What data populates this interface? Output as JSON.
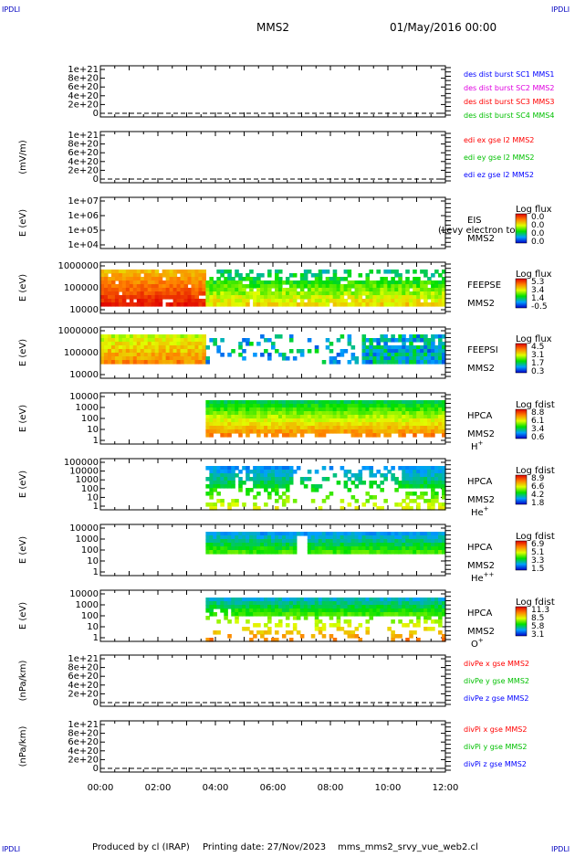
{
  "corner_label": "IPDLI",
  "header": {
    "title": "MMS2",
    "date": "01/May/2016 00:00"
  },
  "footer": {
    "producer": "Produced by cl (IRAP)",
    "printing": "Printing date: 27/Nov/2023",
    "script": "mms_mms2_srvy_vue_web2.cl"
  },
  "colors": {
    "red": "#ff0000",
    "green": "#00c000",
    "blue": "#0000ff",
    "magenta": "#e000e0",
    "dashed": "#000000"
  },
  "chart_data": {
    "type": "heatmap",
    "x_ticks": [
      "00:00",
      "02:00",
      "04:00",
      "06:00",
      "08:00",
      "10:00",
      "12:00"
    ],
    "x_range_hours": [
      0,
      12
    ],
    "panels": [
      {
        "kind": "line",
        "ylabel": "",
        "y_ticks": [
          "1e+21",
          "8e+20",
          "6e+20",
          "4e+20",
          "2e+20",
          "0"
        ],
        "legend": [
          {
            "text": "des dist burst SC1 MMS1",
            "color": "#0000ff"
          },
          {
            "text": "des dist burst SC2 MMS2",
            "color": "#e000e0"
          },
          {
            "text": "des dist burst SC3 MMS3",
            "color": "#ff0000"
          },
          {
            "text": "des dist burst SC4 MMS4",
            "color": "#00c000"
          }
        ]
      },
      {
        "kind": "line",
        "ylabel": "(mV/m)",
        "y_ticks": [
          "1e+21",
          "8e+20",
          "6e+20",
          "4e+20",
          "2e+20",
          "0"
        ],
        "legend": [
          {
            "text": "edi ex gse l2 MMS2",
            "color": "#ff0000"
          },
          {
            "text": "edi ey gse l2 MMS2",
            "color": "#00c000"
          },
          {
            "text": "edi ez gse l2 MMS2",
            "color": "#0000ff"
          }
        ]
      },
      {
        "kind": "spec",
        "ylabel": "E (eV)",
        "y_ticks": [
          "1e+07",
          "1e+06",
          "1e+05",
          "1e+04"
        ],
        "instrument": [
          "EIS",
          "MMS2"
        ],
        "overlay": "(Levy electron to",
        "cbar_title": "Log flux",
        "cbar_ticks": [
          "0.0",
          "0.0",
          "0.0",
          "0.0"
        ],
        "data_start_hour": null
      },
      {
        "kind": "spec",
        "ylabel": "E (eV)",
        "y_ticks": [
          "1000000",
          "100000",
          "10000"
        ],
        "instrument": [
          "FEEPSE",
          "MMS2"
        ],
        "cbar_title": "Log flux",
        "cbar_ticks": [
          "5.3",
          "3.4",
          "1.4",
          "-0.5"
        ],
        "data_start_hour": 0
      },
      {
        "kind": "spec",
        "ylabel": "E (eV)",
        "y_ticks": [
          "1000000",
          "100000",
          "10000"
        ],
        "instrument": [
          "FEEPSI",
          "MMS2"
        ],
        "cbar_title": "Log flux",
        "cbar_ticks": [
          "4.5",
          "3.1",
          "1.7",
          "0.3"
        ],
        "data_start_hour": 0
      },
      {
        "kind": "spec",
        "ylabel": "E (eV)",
        "y_ticks": [
          "10000",
          "1000",
          "100",
          "10",
          "1"
        ],
        "instrument": [
          "HPCA",
          "MMS2"
        ],
        "species": "H",
        "species_sup": "+",
        "cbar_title": "Log fdist",
        "cbar_ticks": [
          "8.8",
          "6.1",
          "3.4",
          "0.6"
        ],
        "data_start_hour": 3.65
      },
      {
        "kind": "spec",
        "ylabel": "E (eV)",
        "y_ticks": [
          "100000",
          "10000",
          "1000",
          "100",
          "10",
          "1"
        ],
        "instrument": [
          "HPCA",
          "MMS2"
        ],
        "species": "He",
        "species_sup": "+",
        "cbar_title": "Log fdist",
        "cbar_ticks": [
          "8.9",
          "6.6",
          "4.2",
          "1.8"
        ],
        "data_start_hour": 3.65
      },
      {
        "kind": "spec",
        "ylabel": "E (eV)",
        "y_ticks": [
          "10000",
          "1000",
          "100",
          "10",
          "1"
        ],
        "instrument": [
          "HPCA",
          "MMS2"
        ],
        "species": "He",
        "species_sup": "++",
        "cbar_title": "Log fdist",
        "cbar_ticks": [
          "6.9",
          "5.1",
          "3.3",
          "1.5"
        ],
        "data_start_hour": 3.65
      },
      {
        "kind": "spec",
        "ylabel": "E (eV)",
        "y_ticks": [
          "10000",
          "1000",
          "100",
          "10",
          "1"
        ],
        "instrument": [
          "HPCA",
          "MMS2"
        ],
        "species": "O",
        "species_sup": "+",
        "cbar_title": "Log fdist",
        "cbar_ticks": [
          "11.3",
          "8.5",
          "5.8",
          "3.1"
        ],
        "data_start_hour": 3.65
      },
      {
        "kind": "line",
        "ylabel": "(nPa/km)",
        "y_ticks": [
          "1e+21",
          "8e+20",
          "6e+20",
          "4e+20",
          "2e+20",
          "0"
        ],
        "legend": [
          {
            "text": "divPe x gse MMS2",
            "color": "#ff0000"
          },
          {
            "text": "divPe y gse MMS2",
            "color": "#00c000"
          },
          {
            "text": "divPe z gse MMS2",
            "color": "#0000ff"
          }
        ]
      },
      {
        "kind": "line",
        "ylabel": "(nPa/km)",
        "y_ticks": [
          "1e+21",
          "8e+20",
          "6e+20",
          "4e+20",
          "2e+20",
          "0"
        ],
        "legend": [
          {
            "text": "divPi x gse MMS2",
            "color": "#ff0000"
          },
          {
            "text": "divPi y gse MMS2",
            "color": "#00c000"
          },
          {
            "text": "divPi z gse MMS2",
            "color": "#0000ff"
          }
        ]
      }
    ]
  }
}
